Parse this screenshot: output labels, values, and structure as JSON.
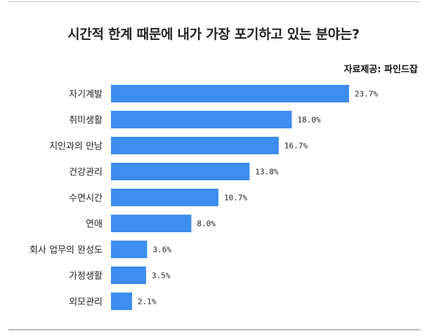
{
  "header": {
    "title": "시간적 한계 때문에 내가 가장 포기하고 있는 분야는?",
    "source": "자료제공: 파인드잡"
  },
  "colors": {
    "bar": "#3d8ef0",
    "text": "#222222",
    "rule": "#b8b8b8"
  },
  "chart_data": {
    "type": "bar",
    "orientation": "horizontal",
    "title": "시간적 한계 때문에 내가 가장 포기하고 있는 분야는?",
    "categories": [
      "자기계발",
      "취미생활",
      "지인과의 만남",
      "건강관리",
      "수면시간",
      "연애",
      "회사 업무의 완성도",
      "가정생활",
      "외모관리"
    ],
    "values": [
      23.7,
      18.0,
      16.7,
      13.8,
      10.7,
      8.0,
      3.6,
      3.5,
      2.1
    ],
    "value_labels": [
      "23.7%",
      "18.0%",
      "16.7%",
      "13.8%",
      "10.7%",
      "8.0%",
      "3.6%",
      "3.5%",
      "2.1%"
    ],
    "unit": "%",
    "xlim": [
      0,
      23.7
    ],
    "grid": false,
    "legend": "none"
  }
}
